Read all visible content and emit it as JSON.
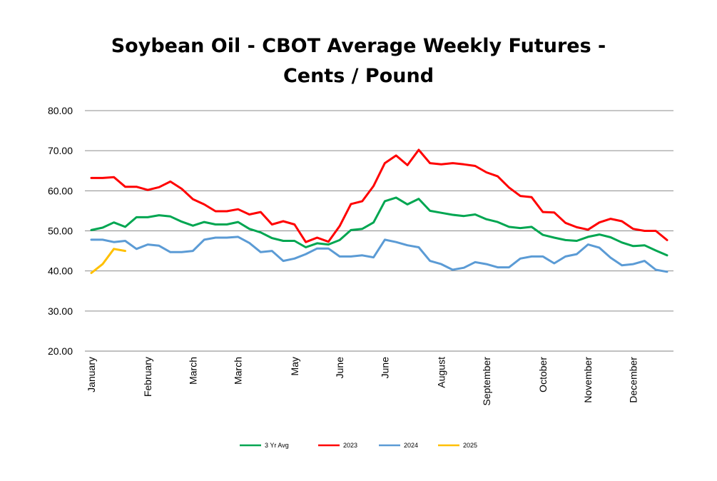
{
  "chart_data": {
    "type": "line",
    "title_line1": "Soybean Oil - CBOT Average Weekly Futures -",
    "title_line2": "Cents / Pound",
    "xlabel": "",
    "ylabel": "",
    "ylim": [
      20,
      80
    ],
    "y_ticks": [
      "20.00",
      "30.00",
      "40.00",
      "50.00",
      "60.00",
      "70.00",
      "80.00"
    ],
    "grid": true,
    "legend_position": "bottom",
    "x_month_labels": [
      {
        "label": "January",
        "week": 1
      },
      {
        "label": "February",
        "week": 6
      },
      {
        "label": "March",
        "week": 10
      },
      {
        "label": "March",
        "week": 14
      },
      {
        "label": "May",
        "week": 19
      },
      {
        "label": "June",
        "week": 23
      },
      {
        "label": "June",
        "week": 27
      },
      {
        "label": "August",
        "week": 32
      },
      {
        "label": "September",
        "week": 36
      },
      {
        "label": "October",
        "week": 41
      },
      {
        "label": "November",
        "week": 45
      },
      {
        "label": "December",
        "week": 49
      }
    ],
    "series": [
      {
        "name": "3 Yr Avg",
        "color": "#00A651",
        "values": [
          50.2,
          50.8,
          52.1,
          51.0,
          53.4,
          53.4,
          53.9,
          53.6,
          52.3,
          51.3,
          52.2,
          51.6,
          51.6,
          52.2,
          50.5,
          49.6,
          48.2,
          47.5,
          47.5,
          45.9,
          46.9,
          46.6,
          47.7,
          50.2,
          50.5,
          52.1,
          57.4,
          58.3,
          56.6,
          58.0,
          55.0,
          54.5,
          54.0,
          53.7,
          54.1,
          52.9,
          52.2,
          51.0,
          50.7,
          51.0,
          49.0,
          48.3,
          47.7,
          47.5,
          48.5,
          49.1,
          48.4,
          47.1,
          46.2,
          46.4,
          45.1,
          43.9
        ]
      },
      {
        "name": "2023",
        "color": "#FF0000",
        "values": [
          63.2,
          63.2,
          63.4,
          61.0,
          61.0,
          60.2,
          60.9,
          62.3,
          60.5,
          57.9,
          56.6,
          54.9,
          54.9,
          55.4,
          54.1,
          54.7,
          51.6,
          52.4,
          51.6,
          47.2,
          48.3,
          47.3,
          51.2,
          56.7,
          57.4,
          61.2,
          66.9,
          68.8,
          66.4,
          70.2,
          66.9,
          66.6,
          66.9,
          66.6,
          66.2,
          64.6,
          63.6,
          60.8,
          58.7,
          58.4,
          54.7,
          54.6,
          52.0,
          50.9,
          50.3,
          52.1,
          53.0,
          52.4,
          50.5,
          50.0,
          50.0,
          47.7
        ]
      },
      {
        "name": "2024",
        "color": "#5B9BD5",
        "values": [
          47.8,
          47.8,
          47.2,
          47.5,
          45.5,
          46.6,
          46.3,
          44.7,
          44.7,
          45.0,
          47.8,
          48.3,
          48.3,
          48.5,
          47.0,
          44.7,
          45.0,
          42.5,
          43.1,
          44.2,
          45.6,
          45.6,
          43.6,
          43.6,
          43.9,
          43.4,
          47.8,
          47.2,
          46.4,
          45.9,
          42.5,
          41.7,
          40.3,
          40.8,
          42.2,
          41.7,
          40.9,
          40.9,
          43.1,
          43.6,
          43.6,
          41.9,
          43.6,
          44.2,
          46.6,
          45.8,
          43.3,
          41.4,
          41.7,
          42.5,
          40.3,
          39.8
        ]
      },
      {
        "name": "2025",
        "color": "#FFC000",
        "values": [
          39.5,
          41.7,
          45.5,
          45.0
        ]
      }
    ]
  }
}
